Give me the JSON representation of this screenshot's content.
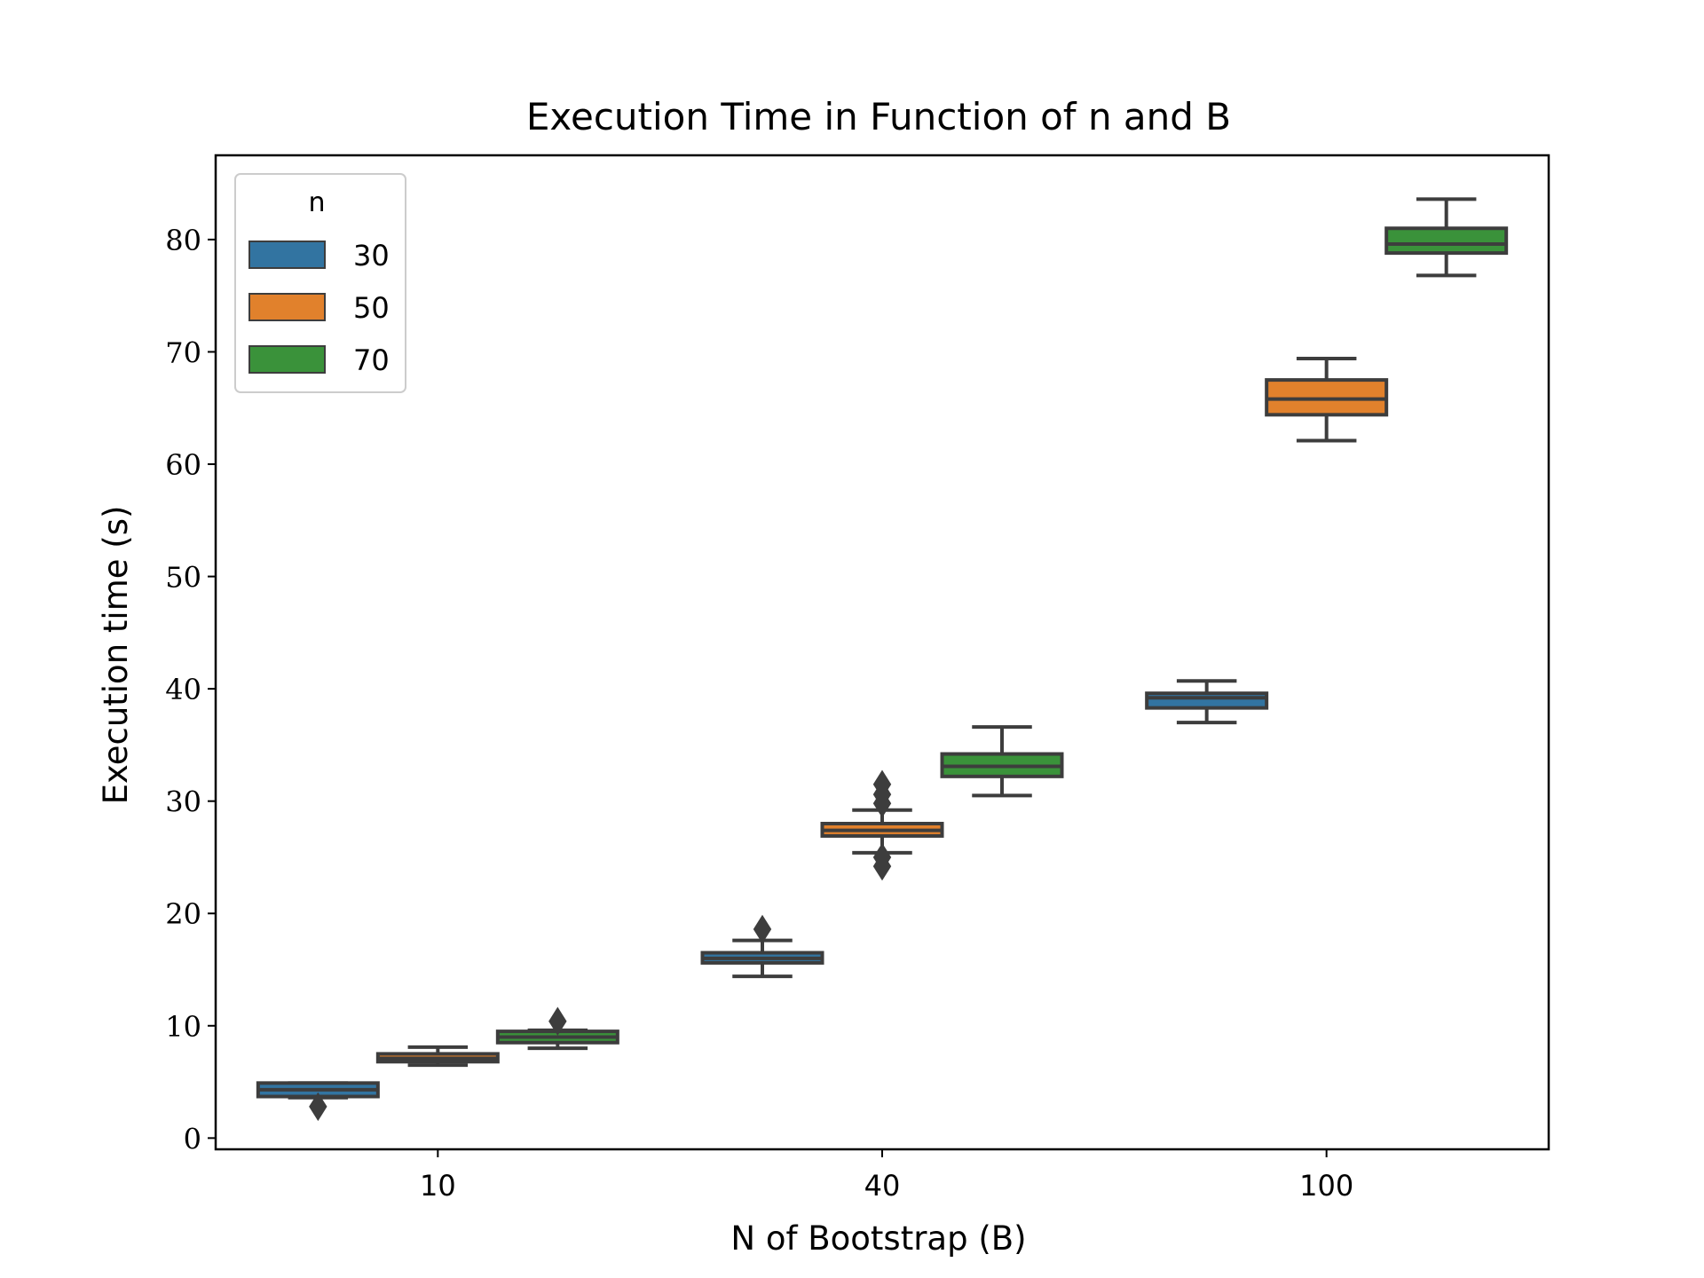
{
  "chart_data": {
    "type": "boxplot",
    "title": "Execution Time in Function of n and B",
    "xlabel": "N of Bootstrap (B)",
    "ylabel": "Execution time (s)",
    "categories": [
      "10",
      "40",
      "100"
    ],
    "ylim": [
      -1,
      87.5
    ],
    "yticks": [
      0,
      10,
      20,
      30,
      40,
      50,
      60,
      70,
      80
    ],
    "grid": false,
    "legend": {
      "title": "n",
      "position": "top-left"
    },
    "series": [
      {
        "name": "30",
        "color": "#3274a1",
        "boxes": [
          {
            "whisker_low": 3.6,
            "q1": 3.7,
            "median": 4.3,
            "q3": 4.9,
            "whisker_high": 4.9,
            "outliers": [
              2.8
            ]
          },
          {
            "whisker_low": 14.4,
            "q1": 15.6,
            "median": 16.0,
            "q3": 16.5,
            "whisker_high": 17.6,
            "outliers": [
              18.6
            ]
          },
          {
            "whisker_low": 37.0,
            "q1": 38.3,
            "median": 39.2,
            "q3": 39.6,
            "whisker_high": 40.7,
            "outliers": []
          }
        ]
      },
      {
        "name": "50",
        "color": "#e1812c",
        "boxes": [
          {
            "whisker_low": 6.5,
            "q1": 6.8,
            "median": 7.1,
            "q3": 7.5,
            "whisker_high": 8.1,
            "outliers": []
          },
          {
            "whisker_low": 25.4,
            "q1": 26.9,
            "median": 27.4,
            "q3": 28.0,
            "whisker_high": 29.2,
            "outliers": [
              24.2,
              25.0,
              29.8,
              30.6,
              31.5
            ]
          },
          {
            "whisker_low": 62.1,
            "q1": 64.4,
            "median": 65.8,
            "q3": 67.5,
            "whisker_high": 69.4,
            "outliers": []
          }
        ]
      },
      {
        "name": "70",
        "color": "#3a923a",
        "boxes": [
          {
            "whisker_low": 8.0,
            "q1": 8.5,
            "median": 9.0,
            "q3": 9.5,
            "whisker_high": 9.6,
            "outliers": [
              10.4
            ]
          },
          {
            "whisker_low": 30.5,
            "q1": 32.2,
            "median": 33.1,
            "q3": 34.2,
            "whisker_high": 36.6,
            "outliers": []
          },
          {
            "whisker_low": 76.8,
            "q1": 78.8,
            "median": 79.6,
            "q3": 81.0,
            "whisker_high": 83.6,
            "outliers": []
          }
        ]
      }
    ]
  }
}
